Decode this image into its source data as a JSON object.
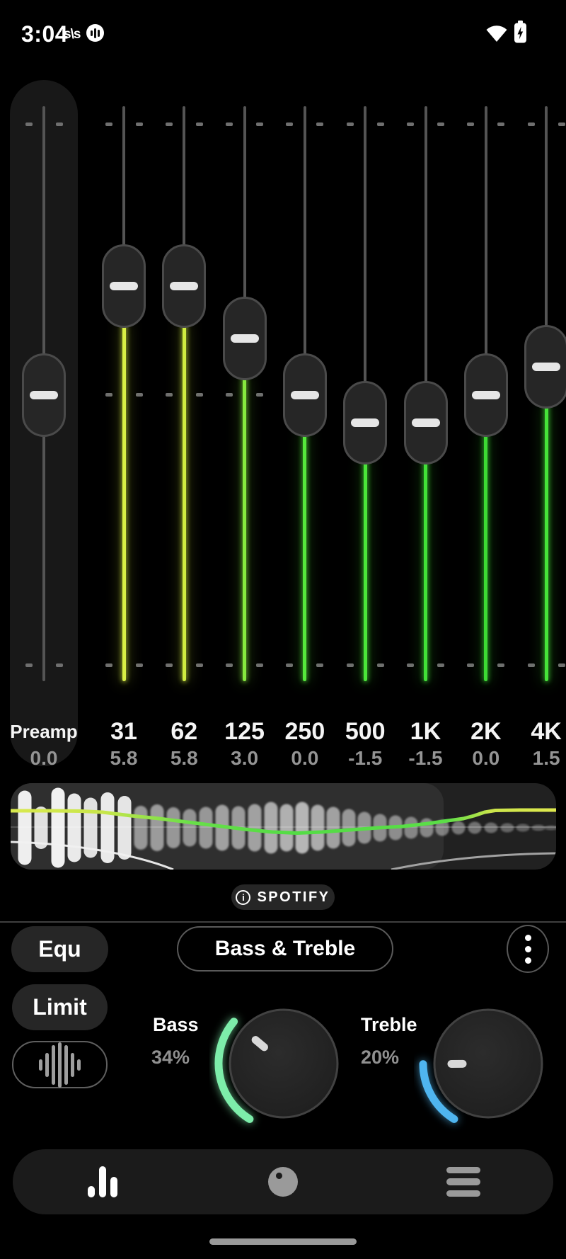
{
  "status_bar": {
    "time": "3:04",
    "svs_icon_text": "s\\s",
    "icons": [
      "svs-notification",
      "equalizer-notification",
      "wifi",
      "battery-charging"
    ]
  },
  "equalizer": {
    "preamp": {
      "label": "Preamp",
      "value": "0.0",
      "gain": 0
    },
    "bands": [
      {
        "freq": "31",
        "value": "5.8",
        "gain": 5.8,
        "color": "#d9ef45"
      },
      {
        "freq": "62",
        "value": "5.8",
        "gain": 5.8,
        "color": "#cfec40"
      },
      {
        "freq": "125",
        "value": "3.0",
        "gain": 3.0,
        "color": "#86e93e"
      },
      {
        "freq": "250",
        "value": "0.0",
        "gain": 0.0,
        "color": "#55e83b"
      },
      {
        "freq": "500",
        "value": "-1.5",
        "gain": -1.5,
        "color": "#4ae639"
      },
      {
        "freq": "1K",
        "value": "-1.5",
        "gain": -1.5,
        "color": "#41e137"
      },
      {
        "freq": "2K",
        "value": "0.0",
        "gain": 0.0,
        "color": "#3cda33"
      },
      {
        "freq": "4K",
        "value": "1.5",
        "gain": 1.5,
        "color": "#46e339"
      }
    ]
  },
  "spectrum": {
    "panel_colors": {
      "base": "#212121",
      "light_region": "#2f2f2f",
      "center_line": "#606060",
      "bar": "#ffffff",
      "arc_left": "#f0f0f0",
      "arc_right": "#b0b0b0"
    },
    "bars": [
      [
        20,
        105,
        0.92
      ],
      [
        43,
        60,
        0.85
      ],
      [
        67,
        113,
        0.93
      ],
      [
        90,
        97,
        0.9
      ],
      [
        113,
        85,
        0.86
      ],
      [
        137,
        100,
        0.9
      ],
      [
        161,
        90,
        0.88
      ],
      [
        184,
        62,
        0.5
      ],
      [
        207,
        66,
        0.52
      ],
      [
        230,
        58,
        0.5
      ],
      [
        253,
        53,
        0.48
      ],
      [
        276,
        59,
        0.5
      ],
      [
        299,
        65,
        0.55
      ],
      [
        322,
        61,
        0.52
      ],
      [
        345,
        67,
        0.55
      ],
      [
        368,
        73,
        0.6
      ],
      [
        390,
        67,
        0.62
      ],
      [
        412,
        73,
        0.65
      ],
      [
        434,
        65,
        0.6
      ],
      [
        456,
        59,
        0.55
      ],
      [
        478,
        53,
        0.5
      ],
      [
        500,
        45,
        0.48
      ],
      [
        522,
        39,
        0.45
      ],
      [
        544,
        35,
        0.45
      ],
      [
        566,
        31,
        0.42
      ],
      [
        588,
        27,
        0.42
      ],
      [
        610,
        23,
        0.4
      ],
      [
        633,
        19,
        0.38
      ],
      [
        656,
        17,
        0.36
      ],
      [
        679,
        15,
        0.34
      ],
      [
        702,
        13,
        0.3
      ],
      [
        724,
        11,
        0.28
      ],
      [
        746,
        9,
        0.26
      ],
      [
        764,
        7,
        0.24
      ]
    ],
    "curve_points": [
      [
        0,
        39
      ],
      [
        60,
        39
      ],
      [
        100,
        39.5
      ],
      [
        130,
        41
      ],
      [
        170,
        46
      ],
      [
        210,
        50
      ],
      [
        250,
        55
      ],
      [
        290,
        60
      ],
      [
        330,
        65
      ],
      [
        370,
        69
      ],
      [
        405,
        70.5
      ],
      [
        440,
        69
      ],
      [
        480,
        66
      ],
      [
        520,
        63
      ],
      [
        555,
        61
      ],
      [
        590,
        57
      ],
      [
        618,
        53
      ],
      [
        640,
        50
      ],
      [
        655,
        46
      ],
      [
        670,
        41
      ],
      [
        685,
        38.5
      ],
      [
        720,
        38
      ],
      [
        771,
        38
      ]
    ],
    "curve_gradient": [
      [
        0,
        "#d9e94e"
      ],
      [
        0.17,
        "#c8e64a"
      ],
      [
        0.33,
        "#68df48"
      ],
      [
        0.52,
        "#53dc45"
      ],
      [
        0.8,
        "#5bde47"
      ],
      [
        0.88,
        "#cbe54b"
      ],
      [
        1,
        "#dfe94e"
      ]
    ]
  },
  "source_chip": {
    "label": "SPOTIFY",
    "icon": "info"
  },
  "preset_row": {
    "equ_button": "Equ",
    "preset_button": "Bass & Treble",
    "menu_icon": "kebab-vertical"
  },
  "limit_button": "Limit",
  "tone_knobs": {
    "bass": {
      "label": "Bass",
      "percent_label": "34%",
      "percent": 34,
      "arc_color": "#7dedaa"
    },
    "treble": {
      "label": "Treble",
      "percent_label": "20%",
      "percent": 20,
      "arc_color": "#4fb5ef"
    }
  },
  "nav": {
    "items": [
      "equalizer-bars",
      "tone-knob",
      "menu-list"
    ]
  }
}
